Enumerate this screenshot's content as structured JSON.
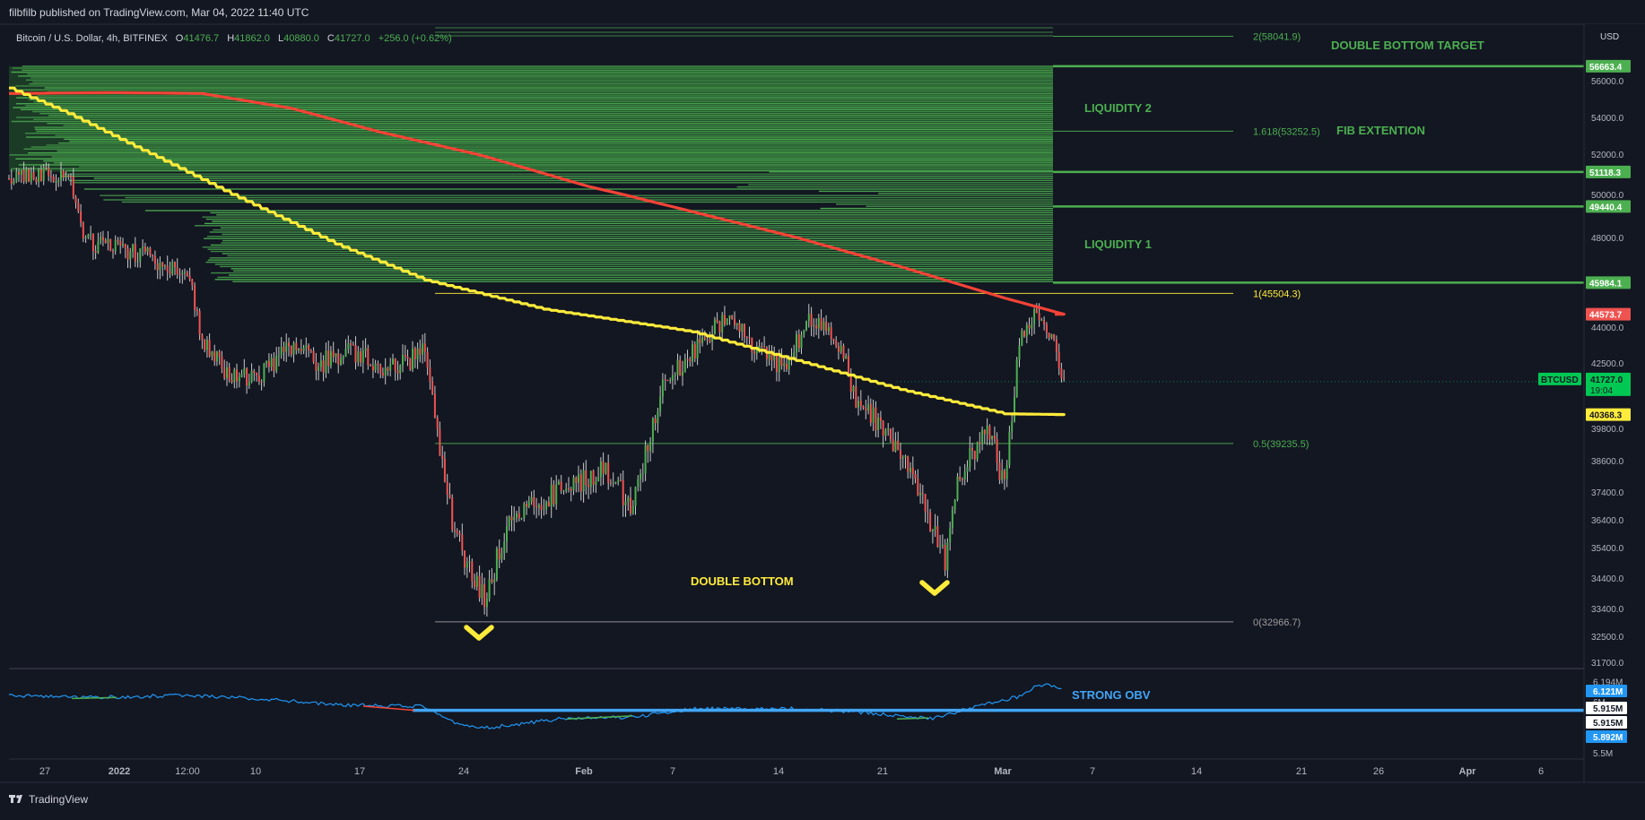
{
  "header": {
    "published": "filbfilb published on TradingView.com, Mar 04, 2022 11:40 UTC"
  },
  "footer": {
    "brand": "TradingView",
    "logo_icon": "tradingview-logo-icon"
  },
  "symbol_bar": {
    "name": "Bitcoin / U.S. Dollar, 4h, BITFINEX",
    "o_label": "O",
    "o": "41476.7",
    "h_label": "H",
    "h": "41862.0",
    "l_label": "L",
    "l": "40880.0",
    "c_label": "C",
    "c": "41727.0",
    "change": "+256.0 (+0.62%)"
  },
  "colors": {
    "background": "#131722",
    "up": "#4caf50",
    "down": "#ef5350",
    "liquidity": "#4caf50",
    "ma_slow": "#f44336",
    "ma_fast": "#ffeb3b",
    "obv_line": "#2196f3",
    "obv_level": "#42a5f5",
    "label_green": "#4caf50",
    "label_yellow": "#ffeb3b"
  },
  "price_axis": {
    "currency": "USD",
    "ticks": [
      "56000.0",
      "54000.0",
      "52000.0",
      "50000.0",
      "48000.0",
      "44000.0",
      "42500.0",
      "39800.0",
      "38600.0",
      "37400.0",
      "36400.0",
      "35400.0",
      "34400.0",
      "33400.0",
      "32500.0",
      "31700.0"
    ],
    "markers": [
      {
        "value": "56663.4",
        "price": 56663.4,
        "bg": "#4caf50",
        "fg": "#ffffff"
      },
      {
        "value": "51118.3",
        "price": 51118.3,
        "bg": "#4caf50",
        "fg": "#ffffff"
      },
      {
        "value": "49440.4",
        "price": 49440.4,
        "bg": "#4caf50",
        "fg": "#ffffff"
      },
      {
        "value": "45984.1",
        "price": 45984.1,
        "bg": "#4caf50",
        "fg": "#ffffff"
      },
      {
        "value": "44573.7",
        "price": 44573.7,
        "bg": "#ef5350",
        "fg": "#ffffff"
      },
      {
        "value": "40368.3",
        "price": 40368.3,
        "bg": "#ffeb3b",
        "fg": "#131722"
      }
    ],
    "current": {
      "value": "41727.0",
      "price": 41727.0,
      "countdown": "19:04",
      "symbol": "BTCUSD"
    }
  },
  "time_axis": {
    "labels": [
      "27",
      "2022",
      "12:00",
      "10",
      "17",
      "24",
      "Feb",
      "7",
      "14",
      "21",
      "Mar",
      "7",
      "14",
      "21",
      "26",
      "Apr",
      "6"
    ]
  },
  "annotations": {
    "double_bottom_target": "DOUBLE BOTTOM TARGET",
    "liquidity_2": "LIQUIDITY 2",
    "fib_extension": "FIB EXTENTION",
    "liquidity_1": "LIQUIDITY 1",
    "double_bottom": "DOUBLE BOTTOM",
    "strong_obv": "STRONG OBV",
    "arrow_icon": "chevron-down-icon"
  },
  "fib_levels": [
    {
      "label": "2(58041.9)",
      "price": 58041.9,
      "color": "#4caf50"
    },
    {
      "label": "1.618(53252.5)",
      "price": 53252.5,
      "color": "#4caf50"
    },
    {
      "label": "1(45504.3)",
      "price": 45504.3,
      "color": "#ffeb3b"
    },
    {
      "label": "0.5(39235.5)",
      "price": 39235.5,
      "color": "#4caf50"
    },
    {
      "label": "0(32966.7)",
      "price": 32966.7,
      "color": "#9e9e9e"
    }
  ],
  "obv_axis": {
    "ticks": [
      "6.194M",
      "6M",
      "5.5M"
    ],
    "markers": [
      {
        "value": "6.121M",
        "bg": "#2196f3",
        "fg": "#ffffff"
      },
      {
        "value": "5.915M",
        "bg": "#ffffff",
        "fg": "#131722"
      },
      {
        "value": "5.915M",
        "bg": "#ffffff",
        "fg": "#131722"
      },
      {
        "value": "5.892M",
        "bg": "#2196f3",
        "fg": "#ffffff"
      }
    ]
  },
  "chart_data": {
    "type": "candlestick",
    "title": "Bitcoin / U.S. Dollar, 4h, BITFINEX",
    "timeframe": "4h",
    "x_range": [
      "2021-12-23",
      "2022-04-08"
    ],
    "y_range": [
      31300,
      58600
    ],
    "series": [
      {
        "name": "BTCUSD",
        "type": "candlestick",
        "close_path": [
          [
            "2021-12-23",
            50800
          ],
          [
            "2021-12-27",
            51000
          ],
          [
            "2021-12-28",
            47800
          ],
          [
            "2022-01-01",
            47200
          ],
          [
            "2022-01-04",
            46500
          ],
          [
            "2022-01-05",
            43300
          ],
          [
            "2022-01-07",
            41800
          ],
          [
            "2022-01-09",
            42000
          ],
          [
            "2022-01-11",
            43200
          ],
          [
            "2022-01-13",
            42500
          ],
          [
            "2022-01-15",
            43000
          ],
          [
            "2022-01-18",
            42200
          ],
          [
            "2022-01-20",
            43100
          ],
          [
            "2022-01-21",
            39000
          ],
          [
            "2022-01-22",
            35800
          ],
          [
            "2022-01-24",
            33800
          ],
          [
            "2022-01-26",
            36800
          ],
          [
            "2022-01-28",
            37200
          ],
          [
            "2022-02-01",
            38200
          ],
          [
            "2022-02-03",
            36900
          ],
          [
            "2022-02-05",
            41600
          ],
          [
            "2022-02-07",
            42900
          ],
          [
            "2022-02-09",
            44300
          ],
          [
            "2022-02-11",
            43400
          ],
          [
            "2022-02-13",
            42200
          ],
          [
            "2022-02-15",
            44400
          ],
          [
            "2022-02-17",
            43200
          ],
          [
            "2022-02-18",
            40800
          ],
          [
            "2022-02-20",
            39800
          ],
          [
            "2022-02-22",
            37600
          ],
          [
            "2022-02-24",
            35000
          ],
          [
            "2022-02-25",
            38100
          ],
          [
            "2022-02-27",
            39700
          ],
          [
            "2022-02-28",
            37500
          ],
          [
            "2022-03-01",
            43400
          ],
          [
            "2022-03-02",
            44500
          ],
          [
            "2022-03-03",
            43700
          ],
          [
            "2022-03-04",
            41727
          ]
        ]
      },
      {
        "name": "MA slow",
        "type": "line",
        "points": [
          [
            "2021-12-23",
            55300
          ],
          [
            "2021-12-30",
            55350
          ],
          [
            "2022-01-05",
            55300
          ],
          [
            "2022-01-11",
            54500
          ],
          [
            "2022-01-17",
            53200
          ],
          [
            "2022-01-24",
            51900
          ],
          [
            "2022-01-31",
            50400
          ],
          [
            "2022-02-07",
            49200
          ],
          [
            "2022-02-14",
            48000
          ],
          [
            "2022-02-21",
            46700
          ],
          [
            "2022-02-28",
            45300
          ],
          [
            "2022-03-04",
            44574
          ]
        ]
      },
      {
        "name": "MA fast",
        "type": "line",
        "points": [
          [
            "2021-12-23",
            55600
          ],
          [
            "2021-12-27",
            54200
          ],
          [
            "2022-01-01",
            52200
          ],
          [
            "2022-01-07",
            50000
          ],
          [
            "2022-01-14",
            47700
          ],
          [
            "2022-01-20",
            46100
          ],
          [
            "2022-01-28",
            44800
          ],
          [
            "2022-02-07",
            43800
          ],
          [
            "2022-02-14",
            42600
          ],
          [
            "2022-02-21",
            41400
          ],
          [
            "2022-02-28",
            40400
          ],
          [
            "2022-03-04",
            40368
          ]
        ]
      },
      {
        "name": "OBV",
        "type": "line",
        "points": [
          [
            "2021-12-23",
            6.06
          ],
          [
            "2021-12-29",
            6.04
          ],
          [
            "2022-01-03",
            6.06
          ],
          [
            "2022-01-09",
            6.03
          ],
          [
            "2022-01-14",
            5.97
          ],
          [
            "2022-01-20",
            5.95
          ],
          [
            "2022-01-22",
            5.8
          ],
          [
            "2022-01-24",
            5.74
          ],
          [
            "2022-01-29",
            5.83
          ],
          [
            "2022-02-03",
            5.85
          ],
          [
            "2022-02-07",
            5.93
          ],
          [
            "2022-02-14",
            5.93
          ],
          [
            "2022-02-18",
            5.9
          ],
          [
            "2022-02-23",
            5.83
          ],
          [
            "2022-02-26",
            5.95
          ],
          [
            "2022-03-01",
            6.05
          ],
          [
            "2022-03-02",
            6.14
          ],
          [
            "2022-03-03",
            6.17
          ],
          [
            "2022-03-04",
            6.12
          ]
        ]
      }
    ],
    "obv_level": 5.915
  }
}
